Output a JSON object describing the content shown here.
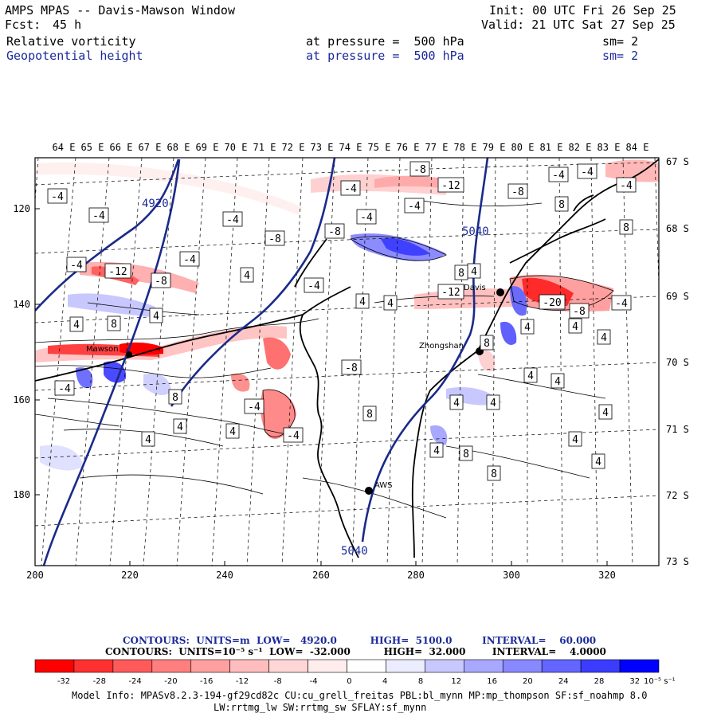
{
  "header": {
    "title": "AMPS MPAS -- Davis-Mawson Window",
    "fcst_label": "Fcst:",
    "fcst_value": "45 h",
    "init": "Init: 00 UTC Fri 26 Sep 25",
    "valid": "Valid: 21 UTC Sat 27 Sep 25",
    "field1_name": "Relative vorticity",
    "field1_level": "at pressure =  500 hPa",
    "field1_smooth": "sm= 2",
    "field2_name": "Geopotential height",
    "field2_level": "at pressure =  500 hPa",
    "field2_smooth": "sm= 2"
  },
  "map": {
    "top_lon_labels": [
      "64 E",
      "65 E",
      "66 E",
      "67 E",
      "68 E",
      "69 E",
      "70 E",
      "71 E",
      "72 E",
      "73 E",
      "74 E",
      "75 E",
      "76 E",
      "77 E",
      "78 E",
      "79 E",
      "80 E",
      "81 E",
      "82 E",
      "83 E",
      "84 E"
    ],
    "right_lat_labels": [
      "67 S",
      "68 S",
      "69 S",
      "70 S",
      "71 S",
      "72 S",
      "73 S"
    ],
    "left_y_ticks": [
      "120",
      "140",
      "160",
      "180"
    ],
    "bottom_x_ticks": [
      "200",
      "220",
      "240",
      "260",
      "280",
      "300",
      "320"
    ],
    "height_contour_labels": [
      "4920",
      "5040",
      "5040"
    ],
    "stations": [
      "Mawson",
      "Zhongshan",
      "Davis",
      "AWS"
    ],
    "vorticity_labels": [
      "-4",
      "-4",
      "-4",
      "-4",
      "-4",
      "-8",
      "-8",
      "-4",
      "-4",
      "-12",
      "-8",
      "-12",
      "-8",
      "-8",
      "-4",
      "-4",
      "-4",
      "-4",
      "-4",
      "4",
      "4",
      "4",
      "4",
      "8",
      "8",
      "4",
      "8",
      "4",
      "8",
      "4",
      "4",
      "4",
      "8",
      "4",
      "4",
      "4",
      "4",
      "8",
      "8",
      "4",
      "4",
      "4",
      "8",
      "8",
      "4",
      "-8",
      "-4",
      "-4",
      "-4",
      "-12",
      "-20",
      "-8",
      "-4",
      "4",
      "4",
      "4"
    ]
  },
  "footer": {
    "contours_height": "CONTOURS:  UNITS=m  LOW=   4920.0          HIGH=  5100.0         INTERVAL=    60.000",
    "contours_vort": "CONTOURS:  UNITS=10⁻⁵ s⁻¹  LOW=  -32.000          HIGH=  32.000        INTERVAL=    4.0000",
    "model_info_1": "Model Info: MPASv8.2.3-194-gf29cd82c CU:cu_grell_freitas PBL:bl_mynn MP:mp_thompson SF:sf_noahmp 8.0",
    "model_info_2": "LW:rrtmg_lw SW:rrtmg_sw SFLAY:sf_mynn"
  },
  "colorbar": {
    "tick_labels": [
      "-32",
      "-28",
      "-24",
      "-20",
      "-16",
      "-12",
      "-8",
      "-4",
      "0",
      "4",
      "8",
      "12",
      "16",
      "20",
      "24",
      "28",
      "32"
    ],
    "units": "10⁻⁵ s⁻¹",
    "colors": [
      "#ff0000",
      "#ff3030",
      "#ff5a5a",
      "#ff7f7f",
      "#ffa0a0",
      "#ffbcbc",
      "#ffd6d6",
      "#ffecec",
      "#ffffff",
      "#ffffff",
      "#ececff",
      "#c8c8ff",
      "#a8a8ff",
      "#8888ff",
      "#6464ff",
      "#3c3cff",
      "#0000ff"
    ]
  }
}
